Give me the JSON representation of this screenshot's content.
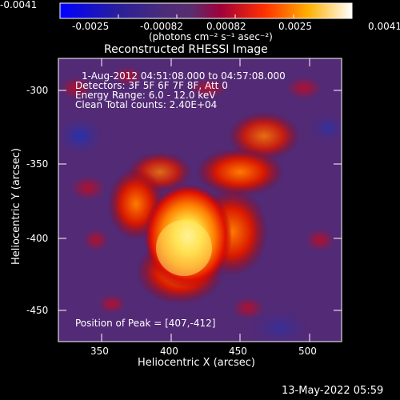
{
  "colorbar": {
    "tick_labels": [
      "-0.0041",
      "-0.0025",
      "-0.00082",
      "0.00082",
      "0.0025",
      "0.0041"
    ],
    "units_label": "(photons cm⁻² s⁻¹ asec⁻²)"
  },
  "image": {
    "title": "Reconstructed RHESSI Image",
    "info_lines": [
      "1-Aug-2012 04:51:08.000 to 04:57:08.000",
      "Detectors: 3F 5F 6F 7F 8F, Att 0",
      "Energy Range: 6.0 - 12.0 keV",
      "Clean    Total counts: 2.40E+04"
    ],
    "peak_label": "Position of Peak = [407,-412]",
    "xlabel": "Heliocentric X (arcsec)",
    "ylabel": "Heliocentric Y (arcsec)",
    "x_ticks": [
      "350",
      "400",
      "450",
      "500"
    ],
    "y_ticks": [
      "-300",
      "-350",
      "-400",
      "-450"
    ]
  },
  "footer": {
    "timestamp": "13-May-2022 05:59"
  },
  "colors": {
    "background": "#000000",
    "foreground": "#ffffff"
  }
}
